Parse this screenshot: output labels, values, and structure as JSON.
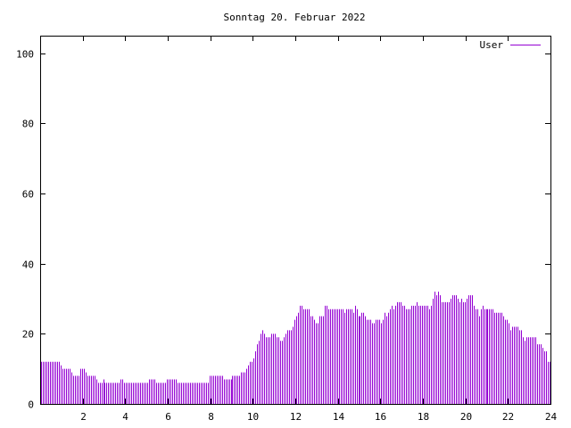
{
  "chart_data": {
    "type": "bar",
    "style": "impulses",
    "title": "Sonntag 20. Februar 2022",
    "xlabel": "",
    "ylabel": "",
    "xlim": [
      0,
      24
    ],
    "ylim": [
      0,
      105
    ],
    "x_ticks": [
      "2",
      "4",
      "6",
      "8",
      "10",
      "12",
      "14",
      "16",
      "18",
      "20",
      "22",
      "24"
    ],
    "y_ticks": [
      "0",
      "20",
      "40",
      "60",
      "80",
      "100"
    ],
    "grid": false,
    "legend_position": "top-right",
    "series": [
      {
        "name": "User",
        "color": "#9400d3",
        "values": [
          12,
          12,
          12,
          12,
          12,
          12,
          12,
          12,
          12,
          12,
          12,
          11,
          10,
          10,
          10,
          10,
          10,
          9,
          8,
          8,
          8,
          8,
          10,
          10,
          10,
          9,
          8,
          8,
          8,
          8,
          8,
          7,
          6,
          6,
          6,
          7,
          6,
          6,
          6,
          6,
          6,
          6,
          6,
          6,
          6,
          7,
          7,
          6,
          6,
          6,
          6,
          6,
          6,
          6,
          6,
          6,
          6,
          6,
          6,
          6,
          6,
          7,
          7,
          7,
          7,
          6,
          6,
          6,
          6,
          6,
          6,
          7,
          7,
          7,
          7,
          7,
          7,
          6,
          6,
          6,
          6,
          6,
          6,
          6,
          6,
          6,
          6,
          6,
          6,
          6,
          6,
          6,
          6,
          6,
          6,
          8,
          8,
          8,
          8,
          8,
          8,
          8,
          8,
          7,
          7,
          7,
          7,
          7,
          8,
          8,
          8,
          8,
          8,
          9,
          9,
          9,
          10,
          11,
          12,
          12,
          13,
          15,
          17,
          18,
          20,
          21,
          20,
          19,
          19,
          19,
          20,
          20,
          20,
          19,
          19,
          18,
          18,
          19,
          20,
          21,
          21,
          21,
          22,
          24,
          25,
          26,
          28,
          28,
          27,
          27,
          27,
          27,
          25,
          25,
          24,
          23,
          23,
          25,
          25,
          25,
          28,
          28,
          27,
          27,
          27,
          27,
          27,
          27,
          27,
          27,
          27,
          26,
          27,
          27,
          27,
          27,
          26,
          28,
          27,
          25,
          25,
          26,
          26,
          25,
          24,
          24,
          24,
          23,
          23,
          24,
          24,
          24,
          23,
          24,
          26,
          25,
          26,
          27,
          28,
          27,
          28,
          29,
          29,
          29,
          28,
          28,
          27,
          27,
          27,
          28,
          28,
          28,
          29,
          28,
          28,
          28,
          28,
          28,
          28,
          27,
          28,
          30,
          32,
          31,
          32,
          31,
          29,
          29,
          29,
          29,
          29,
          30,
          31,
          31,
          31,
          30,
          29,
          30,
          29,
          29,
          30,
          31,
          31,
          31,
          28,
          27,
          27,
          25,
          27,
          28,
          27,
          27,
          27,
          27,
          27,
          27,
          26,
          26,
          26,
          26,
          26,
          25,
          24,
          24,
          23,
          21,
          22,
          22,
          22,
          22,
          21,
          21,
          19,
          18,
          19,
          19,
          19,
          19,
          19,
          19,
          17,
          17,
          17,
          16,
          15,
          15,
          12,
          12
        ]
      }
    ]
  }
}
